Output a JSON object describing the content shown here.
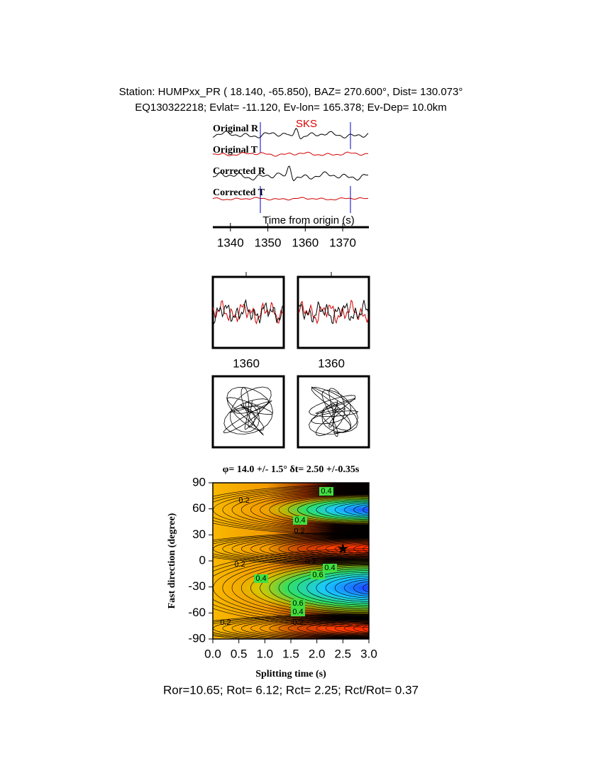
{
  "header": {
    "line1": "Station: HUMPxx_PR (  18.140,  -65.850), BAZ=  270.600°, Dist=  130.073°",
    "line2": "EQ130322218; Evlat= -11.120, Ev-lon= 165.378; Ev-Dep= 10.0km"
  },
  "traces": {
    "labels": [
      "Original R",
      "Original T",
      "Corrected R",
      "Corrected T"
    ],
    "phase": "SKS",
    "xlabel": "Time from origin (s)",
    "xlim": [
      1335.3,
      1377
    ],
    "xticks": [
      1340,
      1350,
      1360,
      1370
    ]
  },
  "waveform_panels": [
    {
      "xtick": 1360
    },
    {
      "xtick": 1360
    }
  ],
  "grid_search": {
    "title": "φ= 14.0 +/- 1.5° δt= 2.50 +/-0.35s",
    "xlabel": "Splitting time (s)",
    "ylabel": "Fast direction (degree)",
    "xlim": [
      0,
      3
    ],
    "ylim": [
      -90,
      90
    ],
    "xticks": [
      {
        "value": 0,
        "label": "0.0"
      },
      0.5,
      {
        "value": 1,
        "label": "1.0"
      },
      1.5,
      {
        "value": 2,
        "label": "2.0"
      },
      2.5,
      {
        "value": 3,
        "label": "3.0"
      }
    ],
    "yticks": [
      -90,
      -60,
      -30,
      0,
      30,
      60,
      90
    ],
    "contour_labels": [
      0.2,
      0.4,
      0.4,
      0.2,
      0.2,
      0.4,
      0.6,
      0.2,
      0.4,
      0.6,
      0.4,
      0.2,
      0.2
    ],
    "best": {
      "dt": 2.5,
      "phi": 14
    }
  },
  "result": "Ror=10.65; Rot= 6.12; Rct= 2.25; Rct/Rot= 0.37"
}
